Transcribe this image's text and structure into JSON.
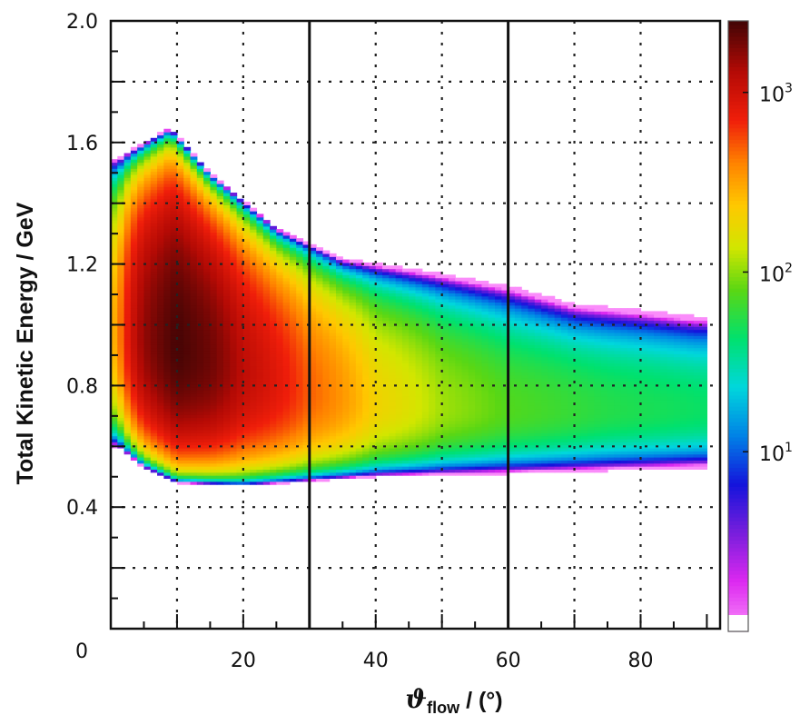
{
  "chart_data": {
    "type": "heatmap",
    "title": "",
    "xlabel": {
      "main": "ϑ",
      "sub": "flow",
      "rest": " / (°)"
    },
    "ylabel": "Total Kinetic Energy / GeV",
    "xlim": [
      0,
      90
    ],
    "ylim": [
      0,
      2.0
    ],
    "x_ticks": [
      "0",
      "20",
      "40",
      "60",
      "80"
    ],
    "x_tick_values": [
      0,
      20,
      40,
      60,
      80
    ],
    "y_ticks": [
      "0.4",
      "0.8",
      "1.2",
      "1.6",
      "2.0"
    ],
    "y_tick_values": [
      0.4,
      0.8,
      1.2,
      1.6,
      2.0
    ],
    "grid": true,
    "vertical_lines_x": [
      30,
      60
    ],
    "colorbar": {
      "scale": "log",
      "min": 1,
      "max": 2500,
      "labels": [
        {
          "base": "10",
          "exp": "1",
          "value": 10
        },
        {
          "base": "10",
          "exp": "2",
          "value": 100
        },
        {
          "base": "10",
          "exp": "3",
          "value": 1000
        }
      ]
    },
    "density_model": {
      "description_of_ridge": "counts concentrated along a band; peak near theta 10, TKE 0.93",
      "ridge_center_tke": [
        [
          1,
          0.98
        ],
        [
          10,
          0.93
        ],
        [
          20,
          0.85
        ],
        [
          30,
          0.78
        ],
        [
          40,
          0.74
        ],
        [
          60,
          0.72
        ],
        [
          90,
          0.72
        ]
      ],
      "upper_edge_tke": [
        [
          1,
          1.55
        ],
        [
          5,
          1.6
        ],
        [
          9,
          1.65
        ],
        [
          15,
          1.5
        ],
        [
          25,
          1.32
        ],
        [
          35,
          1.22
        ],
        [
          50,
          1.17
        ],
        [
          60,
          1.13
        ],
        [
          70,
          1.07
        ],
        [
          80,
          1.05
        ],
        [
          88,
          1.03
        ]
      ],
      "lower_edge_tke": [
        [
          1,
          0.6
        ],
        [
          5,
          0.53
        ],
        [
          10,
          0.48
        ],
        [
          20,
          0.47
        ],
        [
          40,
          0.5
        ],
        [
          60,
          0.51
        ],
        [
          89,
          0.53
        ]
      ],
      "peak_counts": [
        [
          1,
          300
        ],
        [
          5,
          1600
        ],
        [
          10,
          2500
        ],
        [
          15,
          2000
        ],
        [
          20,
          1200
        ],
        [
          30,
          500
        ],
        [
          40,
          200
        ],
        [
          50,
          110
        ],
        [
          60,
          75
        ],
        [
          75,
          55
        ],
        [
          90,
          45
        ]
      ]
    }
  }
}
